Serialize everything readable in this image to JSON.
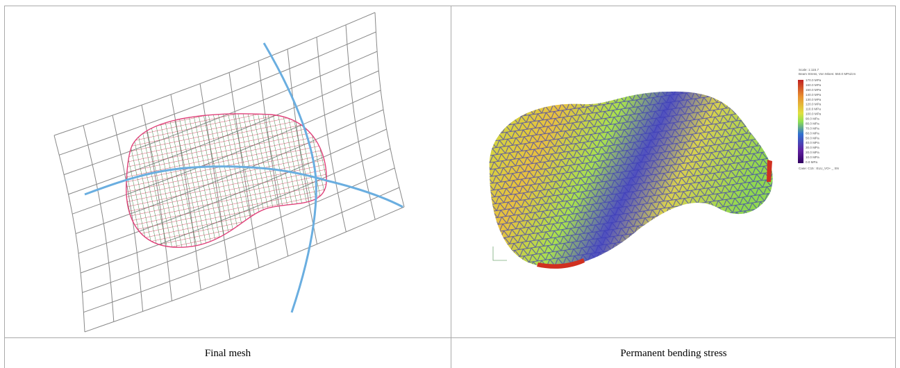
{
  "figure": {
    "panels": [
      {
        "caption": "Final mesh"
      },
      {
        "caption": "Permanent bending stress",
        "legend": {
          "scale": "Scale: 1:115.7",
          "title": "Beam Stress, Von Mises: 550.0 MPa/cm",
          "labels": [
            "170.0 MPa",
            "160.0 MPa",
            "150.0 MPa",
            "140.0 MPa",
            "130.0 MPa",
            "120.0 MPa",
            "110.0 MPa",
            "100.0 MPa",
            "90.0 MPa",
            "80.0 MPa",
            "70.0 MPa",
            "60.0 MPa",
            "50.0 MPa",
            "40.0 MPa",
            "30.0 MPa",
            "20.0 MPa",
            "10.0 MPa",
            "0.0 MPa"
          ],
          "case": "Case: C15 : ELU_VO+ _ SN"
        }
      }
    ]
  }
}
